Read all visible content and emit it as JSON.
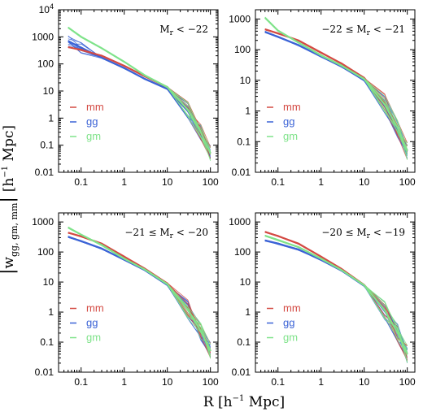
{
  "figure": {
    "xlabel": "R [h⁻¹ Mpc]",
    "ylabel": "|w gg, gm, mm| [h⁻¹ Mpc]",
    "ylabel_parts": {
      "w": "w",
      "subscript": "gg, gm, mm",
      "units": "[h",
      "units_sup": "−1",
      "units_tail": " Mpc]"
    },
    "xlabel_parts": {
      "main": "R [h",
      "sup": "−1",
      "tail": " Mpc]"
    },
    "colors": {
      "mm": "#d44a43",
      "gg": "#3b63d6",
      "gm": "#7fe38a"
    }
  },
  "chart_data": [
    {
      "type": "line",
      "panel_label": "M_r < −22",
      "label_parts": [
        "M",
        "r",
        " < −22"
      ],
      "xlabel": "R [h⁻¹ Mpc]",
      "ylabel": "|w| [h⁻¹ Mpc]",
      "xscale": "log",
      "yscale": "log",
      "xlim": [
        0.03,
        150
      ],
      "ylim": [
        0.01,
        10000
      ],
      "xticks": [
        "0.1",
        "1",
        "10",
        "100"
      ],
      "yticks": [
        "0.01",
        "0.1",
        "1",
        "10",
        "100",
        "1000",
        "10⁴"
      ],
      "legend": [
        "mm",
        "gg",
        "gm"
      ],
      "legend_position": "left",
      "series": [
        {
          "name": "mm",
          "x": [
            0.05,
            0.1,
            0.3,
            1,
            3,
            10,
            30,
            60,
            100
          ],
          "y": [
            420,
            330,
            200,
            85,
            35,
            14,
            2.0,
            0.3,
            0.05
          ]
        },
        {
          "name": "gg",
          "x": [
            0.05,
            0.1,
            0.3,
            1,
            3,
            10,
            30,
            60,
            100
          ],
          "y": [
            700,
            400,
            170,
            70,
            28,
            12,
            1.8,
            0.3,
            0.05
          ]
        },
        {
          "name": "gm",
          "x": [
            0.05,
            0.1,
            0.3,
            1,
            3,
            10,
            30,
            60,
            100
          ],
          "y": [
            2200,
            1000,
            380,
            120,
            38,
            14,
            2.0,
            0.3,
            0.05
          ]
        }
      ]
    },
    {
      "type": "line",
      "panel_label": "−22 ≤ M_r < −21",
      "label_parts": [
        "−22 ≤ M",
        "r",
        " < −21"
      ],
      "xlabel": "R [h⁻¹ Mpc]",
      "ylabel": "|w| [h⁻¹ Mpc]",
      "xscale": "log",
      "yscale": "log",
      "xlim": [
        0.03,
        150
      ],
      "ylim": [
        0.01,
        2000
      ],
      "xticks": [
        "0.1",
        "1",
        "10",
        "100"
      ],
      "yticks": [
        "0.01",
        "0.1",
        "1",
        "10",
        "100",
        "1000"
      ],
      "legend": [
        "mm",
        "gg",
        "gm"
      ],
      "legend_position": "left",
      "series": [
        {
          "name": "mm",
          "x": [
            0.05,
            0.1,
            0.3,
            1,
            3,
            10,
            30,
            60,
            100
          ],
          "y": [
            460,
            340,
            200,
            80,
            35,
            12,
            1.8,
            0.3,
            0.05
          ]
        },
        {
          "name": "gg",
          "x": [
            0.05,
            0.1,
            0.3,
            1,
            3,
            10,
            30,
            60,
            100
          ],
          "y": [
            380,
            260,
            140,
            60,
            28,
            10,
            1.5,
            0.25,
            0.05
          ]
        },
        {
          "name": "gm",
          "x": [
            0.05,
            0.1,
            0.3,
            1,
            3,
            10,
            30,
            60,
            100
          ],
          "y": [
            1100,
            420,
            170,
            65,
            30,
            11,
            1.6,
            0.28,
            0.05
          ]
        }
      ]
    },
    {
      "type": "line",
      "panel_label": "−21 ≤ M_r < −20",
      "label_parts": [
        "−21 ≤ M",
        "r",
        " < −20"
      ],
      "xlabel": "R [h⁻¹ Mpc]",
      "ylabel": "|w| [h⁻¹ Mpc]",
      "xscale": "log",
      "yscale": "log",
      "xlim": [
        0.03,
        150
      ],
      "ylim": [
        0.01,
        2000
      ],
      "xticks": [
        "0.1",
        "1",
        "10",
        "100"
      ],
      "yticks": [
        "0.01",
        "0.1",
        "1",
        "10",
        "100",
        "1000"
      ],
      "legend": [
        "mm",
        "gg",
        "gm"
      ],
      "legend_position": "left",
      "series": [
        {
          "name": "mm",
          "x": [
            0.05,
            0.1,
            0.3,
            1,
            3,
            10,
            30,
            60,
            100
          ],
          "y": [
            440,
            330,
            190,
            70,
            28,
            9,
            1.3,
            0.25,
            0.05
          ]
        },
        {
          "name": "gg",
          "x": [
            0.05,
            0.1,
            0.3,
            1,
            3,
            10,
            30,
            60,
            100
          ],
          "y": [
            320,
            230,
            130,
            55,
            25,
            8,
            1.2,
            0.22,
            0.05
          ]
        },
        {
          "name": "gm",
          "x": [
            0.05,
            0.1,
            0.3,
            1,
            3,
            10,
            30,
            60,
            100
          ],
          "y": [
            650,
            380,
            170,
            60,
            26,
            8.5,
            1.2,
            0.23,
            0.05
          ]
        }
      ]
    },
    {
      "type": "line",
      "panel_label": "−20 ≤ M_r < −19",
      "label_parts": [
        "−20 ≤ M",
        "r",
        " < −19"
      ],
      "xlabel": "R [h⁻¹ Mpc]",
      "ylabel": "|w| [h⁻¹ Mpc]",
      "xscale": "log",
      "yscale": "log",
      "xlim": [
        0.03,
        150
      ],
      "ylim": [
        0.01,
        2000
      ],
      "xticks": [
        "0.1",
        "1",
        "10",
        "100"
      ],
      "yticks": [
        "0.01",
        "0.1",
        "1",
        "10",
        "100",
        "1000"
      ],
      "legend": [
        "mm",
        "gg",
        "gm"
      ],
      "legend_position": "left",
      "series": [
        {
          "name": "mm",
          "x": [
            0.05,
            0.1,
            0.3,
            1,
            3,
            10,
            30,
            60,
            100
          ],
          "y": [
            470,
            340,
            190,
            70,
            27,
            8,
            1.2,
            0.2,
            0.04
          ]
        },
        {
          "name": "gg",
          "x": [
            0.05,
            0.1,
            0.3,
            1,
            3,
            10,
            30,
            60,
            100
          ],
          "y": [
            240,
            190,
            120,
            55,
            24,
            7.5,
            1.1,
            0.2,
            0.04
          ]
        },
        {
          "name": "gm",
          "x": [
            0.05,
            0.1,
            0.3,
            1,
            3,
            10,
            30,
            60,
            100
          ],
          "y": [
            350,
            250,
            145,
            60,
            25,
            7.8,
            1.15,
            0.2,
            0.04
          ]
        }
      ]
    }
  ]
}
